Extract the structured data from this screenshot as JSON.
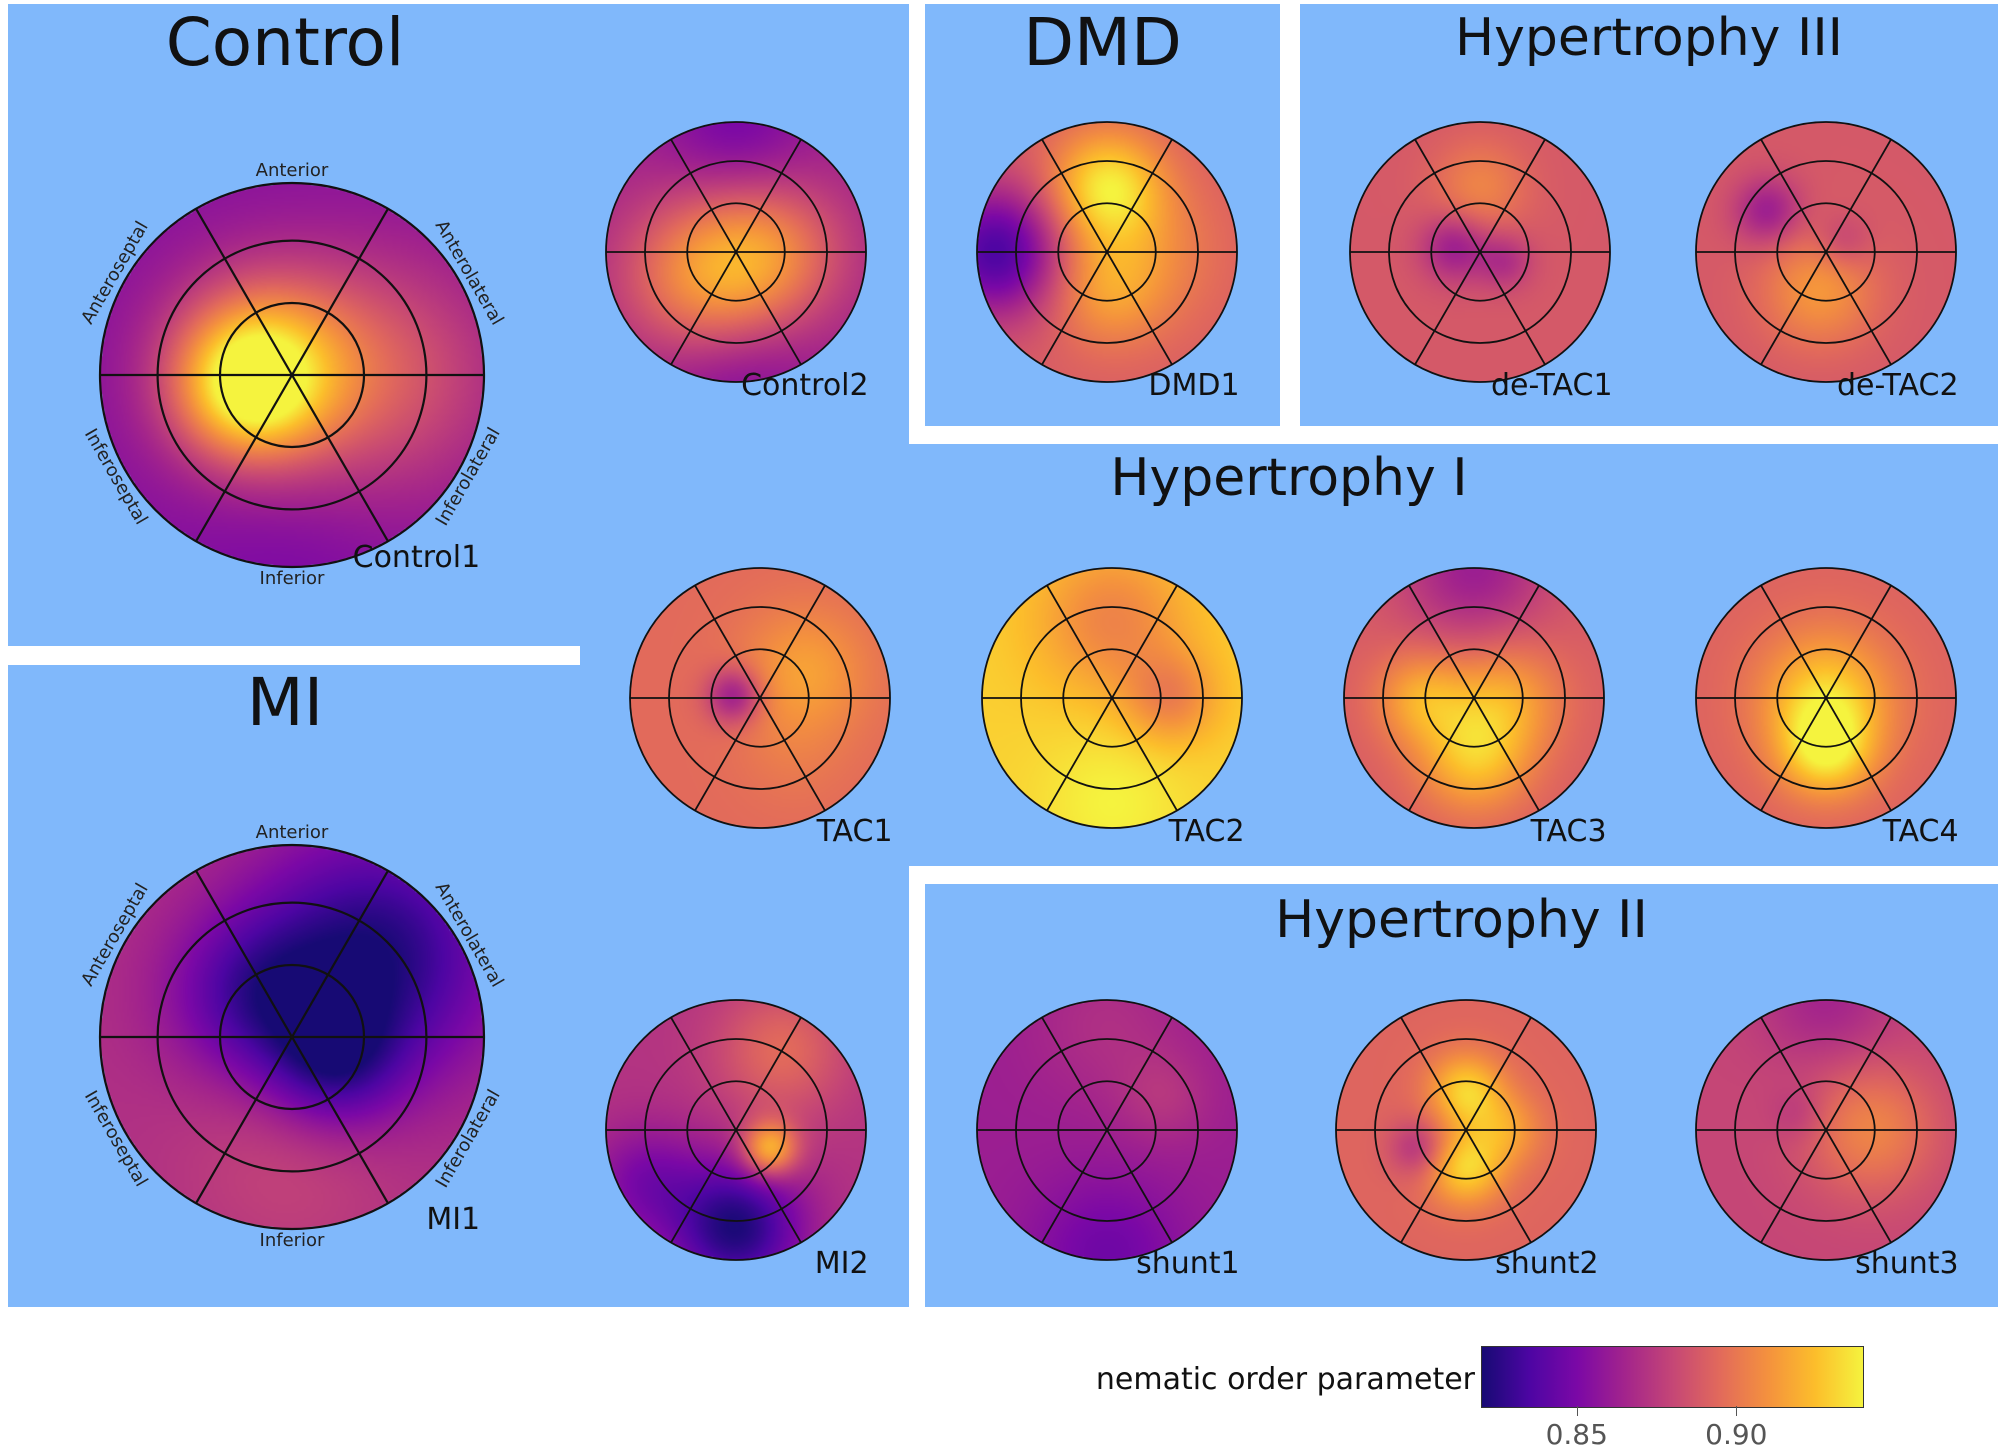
{
  "colors": {
    "panel_bg": "#80b8fb",
    "colormap": [
      "#170a74",
      "#4d05a3",
      "#7b08a6",
      "#a3248c",
      "#c54676",
      "#e26a5b",
      "#f4913e",
      "#fcbe2b",
      "#f5f33e"
    ]
  },
  "direction_labels": {
    "anterior": "Anterior",
    "anterolateral": "Anterolateral",
    "inferolateral": "Inferolateral",
    "inferior": "Inferior",
    "inferoseptal": "Inferoseptal",
    "anteroseptal": "Anteroseptal"
  },
  "groups": [
    {
      "key": "control",
      "title": "Control"
    },
    {
      "key": "dmd",
      "title": "DMD"
    },
    {
      "key": "hyp3",
      "title": "Hypertrophy III"
    },
    {
      "key": "hyp1",
      "title": "Hypertrophy I"
    },
    {
      "key": "mi",
      "title": "MI"
    },
    {
      "key": "hyp2",
      "title": "Hypertrophy II"
    }
  ],
  "plots": [
    {
      "key": "control1",
      "label": "Control1",
      "group": "Control",
      "base": 0.855,
      "spots": [
        {
          "a": 165,
          "r": 0.15,
          "v": 0.91,
          "s": 0.35
        },
        {
          "a": 0,
          "r": 0.5,
          "v": 0.885,
          "s": 0.45
        },
        {
          "a": 195,
          "r": 0.25,
          "v": 0.905,
          "s": 0.25
        },
        {
          "a": 270,
          "r": 0.9,
          "v": 0.85,
          "s": 0.4
        }
      ]
    },
    {
      "key": "control2",
      "label": "Control2",
      "group": "Control",
      "base": 0.865,
      "spots": [
        {
          "a": 220,
          "r": 0.3,
          "v": 0.91,
          "s": 0.45
        },
        {
          "a": 90,
          "r": 0.95,
          "v": 0.848,
          "s": 0.4
        },
        {
          "a": 270,
          "r": 0.95,
          "v": 0.85,
          "s": 0.45
        },
        {
          "a": 0,
          "r": 0.3,
          "v": 0.895,
          "s": 0.4
        }
      ]
    },
    {
      "key": "dmd1",
      "label": "DMD1",
      "group": "DMD",
      "base": 0.89,
      "spots": [
        {
          "a": 180,
          "r": 0.85,
          "v": 0.835,
          "s": 0.35
        },
        {
          "a": 90,
          "r": 0.5,
          "v": 0.935,
          "s": 0.3
        },
        {
          "a": 0,
          "r": 0.3,
          "v": 0.905,
          "s": 0.4
        },
        {
          "a": 270,
          "r": 0.3,
          "v": 0.91,
          "s": 0.3
        }
      ]
    },
    {
      "key": "detac1",
      "label": "de-TAC1",
      "group": "Hypertrophy III",
      "base": 0.888,
      "spots": [
        {
          "a": 170,
          "r": 0.2,
          "v": 0.862,
          "s": 0.18
        },
        {
          "a": 340,
          "r": 0.2,
          "v": 0.87,
          "s": 0.15
        },
        {
          "a": 90,
          "r": 0.5,
          "v": 0.905,
          "s": 0.25
        }
      ]
    },
    {
      "key": "detac2",
      "label": "de-TAC2",
      "group": "Hypertrophy III",
      "base": 0.888,
      "spots": [
        {
          "a": 145,
          "r": 0.55,
          "v": 0.862,
          "s": 0.18
        },
        {
          "a": 260,
          "r": 0.3,
          "v": 0.912,
          "s": 0.3
        },
        {
          "a": 30,
          "r": 0.15,
          "v": 0.875,
          "s": 0.15
        }
      ]
    },
    {
      "key": "tac1",
      "label": "TAC1",
      "group": "Hypertrophy I",
      "base": 0.895,
      "spots": [
        {
          "a": 175,
          "r": 0.2,
          "v": 0.86,
          "s": 0.15
        },
        {
          "a": 30,
          "r": 0.4,
          "v": 0.915,
          "s": 0.35
        },
        {
          "a": 300,
          "r": 0.5,
          "v": 0.9,
          "s": 0.3
        }
      ]
    },
    {
      "key": "tac2",
      "label": "TAC2",
      "group": "Hypertrophy I",
      "base": 0.93,
      "spots": [
        {
          "a": 90,
          "r": 0.6,
          "v": 0.905,
          "s": 0.4
        },
        {
          "a": 0,
          "r": 0.45,
          "v": 0.905,
          "s": 0.25
        },
        {
          "a": 270,
          "r": 0.8,
          "v": 0.94,
          "s": 0.4
        }
      ]
    },
    {
      "key": "tac3",
      "label": "TAC3",
      "group": "Hypertrophy I",
      "base": 0.89,
      "spots": [
        {
          "a": 90,
          "r": 1.0,
          "v": 0.862,
          "s": 0.4
        },
        {
          "a": 270,
          "r": 0.45,
          "v": 0.925,
          "s": 0.3
        },
        {
          "a": 0,
          "r": 0.25,
          "v": 0.915,
          "s": 0.3
        },
        {
          "a": 180,
          "r": 0.4,
          "v": 0.918,
          "s": 0.25
        }
      ]
    },
    {
      "key": "tac4",
      "label": "TAC4",
      "group": "Hypertrophy I",
      "base": 0.892,
      "spots": [
        {
          "a": 0,
          "r": 0.0,
          "v": 0.93,
          "s": 0.35
        },
        {
          "a": 270,
          "r": 0.4,
          "v": 0.93,
          "s": 0.25
        }
      ]
    },
    {
      "key": "mi1",
      "label": "MI1",
      "group": "MI",
      "base": 0.87,
      "spots": [
        {
          "a": 45,
          "r": 0.6,
          "v": 0.822,
          "s": 0.45
        },
        {
          "a": 135,
          "r": 0.3,
          "v": 0.84,
          "s": 0.3
        },
        {
          "a": 330,
          "r": 0.25,
          "v": 0.835,
          "s": 0.25
        },
        {
          "a": 270,
          "r": 0.6,
          "v": 0.88,
          "s": 0.4
        }
      ]
    },
    {
      "key": "mi2",
      "label": "MI2",
      "group": "MI",
      "base": 0.872,
      "spots": [
        {
          "a": 270,
          "r": 0.75,
          "v": 0.822,
          "s": 0.35
        },
        {
          "a": 330,
          "r": 0.3,
          "v": 0.925,
          "s": 0.15
        },
        {
          "a": 60,
          "r": 0.7,
          "v": 0.895,
          "s": 0.35
        },
        {
          "a": 210,
          "r": 0.8,
          "v": 0.85,
          "s": 0.3
        }
      ]
    },
    {
      "key": "shunt1",
      "label": "shunt1",
      "group": "Hypertrophy II",
      "base": 0.862,
      "spots": [
        {
          "a": 270,
          "r": 0.95,
          "v": 0.846,
          "s": 0.4
        },
        {
          "a": 90,
          "r": 0.8,
          "v": 0.87,
          "s": 0.4
        },
        {
          "a": 30,
          "r": 0.5,
          "v": 0.872,
          "s": 0.25
        }
      ]
    },
    {
      "key": "shunt2",
      "label": "shunt2",
      "group": "Hypertrophy II",
      "base": 0.893,
      "spots": [
        {
          "a": 90,
          "r": 0.3,
          "v": 0.93,
          "s": 0.2
        },
        {
          "a": 270,
          "r": 0.3,
          "v": 0.93,
          "s": 0.2
        },
        {
          "a": 200,
          "r": 0.4,
          "v": 0.872,
          "s": 0.15
        },
        {
          "a": 0,
          "r": 0.3,
          "v": 0.915,
          "s": 0.2
        }
      ]
    },
    {
      "key": "shunt3",
      "label": "shunt3",
      "group": "Hypertrophy II",
      "base": 0.88,
      "spots": [
        {
          "a": 150,
          "r": 0.25,
          "v": 0.872,
          "s": 0.15
        },
        {
          "a": 0,
          "r": 0.35,
          "v": 0.905,
          "s": 0.35
        },
        {
          "a": 90,
          "r": 1.0,
          "v": 0.865,
          "s": 0.35
        }
      ]
    }
  ],
  "colorbar": {
    "label": "nematic order parameter",
    "min": 0.82,
    "max": 0.94,
    "ticks": [
      {
        "value": 0.85,
        "label": "0.85"
      },
      {
        "value": 0.9,
        "label": "0.90"
      }
    ]
  }
}
